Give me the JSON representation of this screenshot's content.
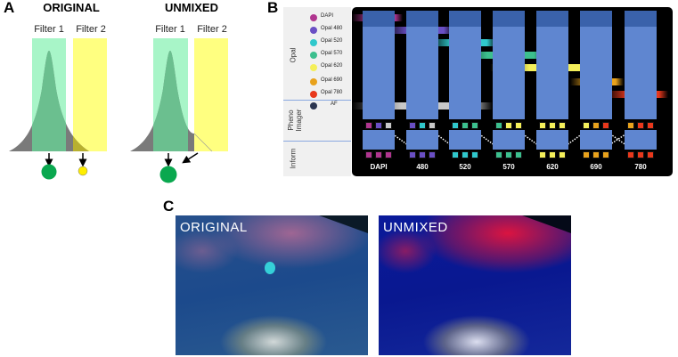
{
  "panel_a": {
    "label": "A",
    "original": {
      "title": "ORIGINAL",
      "filter1": "Filter 1",
      "filter2": "Filter 2"
    },
    "unmixed": {
      "title": "UNMIXED",
      "filter1": "Filter 1",
      "filter2": "Filter 2"
    },
    "colors": {
      "filter1": "#a8f5c8",
      "filter2": "#ffff80",
      "curve": "#7a7a7a",
      "overlap": "#6bbf8f",
      "dot_green": "#0aa84f",
      "dot_yellow": "#ffee00"
    }
  },
  "panel_b": {
    "label": "B",
    "row_labels": {
      "opal": "Opal",
      "pheno": "Pheno Imager",
      "inform": "Inform"
    },
    "legend": [
      {
        "label": "DAPI",
        "color": "#b0358f"
      },
      {
        "label": "Opal 480",
        "color": "#6a4fc4"
      },
      {
        "label": "Opal 520",
        "color": "#30c8cc"
      },
      {
        "label": "Opal 570",
        "color": "#3cbf8e"
      },
      {
        "label": "Opal 620",
        "color": "#f4ef5a"
      },
      {
        "label": "Opal 690",
        "color": "#e8a21c"
      },
      {
        "label": "Opal 780",
        "color": "#e8381c"
      },
      {
        "label": "AF",
        "color": "#2b3550"
      }
    ],
    "channels": [
      {
        "label": "DAPI",
        "filter": [
          "#b0358f",
          "#6a4fc4",
          "#c8c8c8"
        ],
        "unmixed": [
          "#b0358f",
          "#b0358f",
          "#b0358f"
        ]
      },
      {
        "label": "480",
        "filter": [
          "#6a4fc4",
          "#30c8cc",
          "#c8c8c8"
        ],
        "unmixed": [
          "#6a4fc4",
          "#6a4fc4",
          "#6a4fc4"
        ]
      },
      {
        "label": "520",
        "filter": [
          "#30c8cc",
          "#3cbf8e",
          "#3cbf8e"
        ],
        "unmixed": [
          "#30c8cc",
          "#30c8cc",
          "#30c8cc"
        ]
      },
      {
        "label": "570",
        "filter": [
          "#3cbf8e",
          "#f4ef5a",
          "#f4ef5a"
        ],
        "unmixed": [
          "#3cbf8e",
          "#3cbf8e",
          "#3cbf8e"
        ]
      },
      {
        "label": "620",
        "filter": [
          "#f4ef5a",
          "#f4ef5a",
          "#f4ef5a"
        ],
        "unmixed": [
          "#f4ef5a",
          "#f4ef5a",
          "#f4ef5a"
        ]
      },
      {
        "label": "690",
        "filter": [
          "#f4ef5a",
          "#e8a21c",
          "#e8381c"
        ],
        "unmixed": [
          "#e8a21c",
          "#e8a21c",
          "#e8a21c"
        ]
      },
      {
        "label": "780",
        "filter": [
          "#e8a21c",
          "#e8381c",
          "#e8381c"
        ],
        "unmixed": [
          "#e8381c",
          "#e8381c",
          "#e8381c"
        ]
      }
    ]
  },
  "panel_c": {
    "label": "C",
    "original_label": "ORIGINAL",
    "unmixed_label": "UNMIXED"
  }
}
